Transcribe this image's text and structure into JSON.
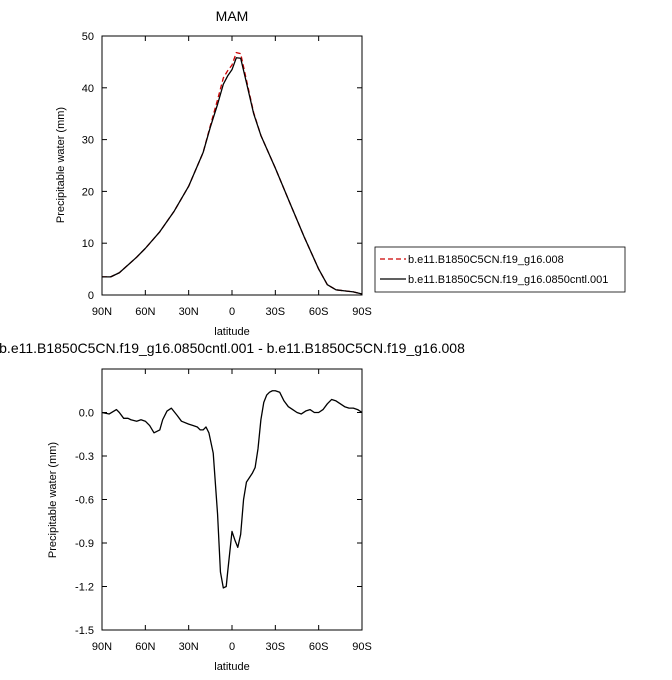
{
  "chart_data": [
    {
      "type": "line",
      "title": "MAM",
      "xlabel": "latitude",
      "ylabel": "Precipitable water (mm)",
      "xlim": [
        90,
        -90
      ],
      "ylim": [
        0,
        50
      ],
      "x_ticks": [
        90,
        60,
        30,
        0,
        -30,
        -60,
        -90
      ],
      "x_tick_labels": [
        "90N",
        "60N",
        "30N",
        "0",
        "30S",
        "60S",
        "90S"
      ],
      "y_ticks": [
        0,
        10,
        20,
        30,
        40,
        50
      ],
      "y_tick_labels": [
        "0",
        "10",
        "20",
        "30",
        "40",
        "50"
      ],
      "legend": "right",
      "series": [
        {
          "name": "b.e11.B1850C5CN.f19_g16.008",
          "color": "#cc0000",
          "dash": "dashed",
          "x": [
            90,
            84,
            78,
            72,
            66,
            60,
            50,
            40,
            30,
            20,
            15,
            10,
            6,
            3,
            0,
            -3,
            -6,
            -10,
            -15,
            -20,
            -30,
            -40,
            -50,
            -60,
            -66,
            -72,
            -78,
            -84,
            -90
          ],
          "y": [
            3.5,
            3.5,
            4.3,
            5.8,
            7.3,
            9.0,
            12.2,
            16.2,
            21.0,
            27.5,
            32.7,
            37.7,
            41.9,
            43.3,
            44.4,
            46.8,
            46.6,
            41.5,
            35.2,
            30.8,
            24.5,
            17.8,
            11.2,
            5.0,
            2.0,
            1.0,
            0.8,
            0.6,
            0.2
          ]
        },
        {
          "name": "b.e11.B1850C5CN.f19_g16.0850cntl.001",
          "color": "#000000",
          "dash": "solid",
          "x": [
            90,
            84,
            78,
            72,
            66,
            60,
            50,
            40,
            30,
            20,
            15,
            10,
            6,
            3,
            0,
            -3,
            -6,
            -10,
            -15,
            -20,
            -30,
            -40,
            -50,
            -60,
            -66,
            -72,
            -78,
            -84,
            -90
          ],
          "y": [
            3.5,
            3.5,
            4.3,
            5.8,
            7.3,
            9.0,
            12.2,
            16.2,
            21.0,
            27.5,
            32.4,
            36.8,
            40.7,
            42.3,
            43.5,
            45.8,
            45.7,
            41.0,
            35.0,
            30.8,
            24.5,
            17.8,
            11.2,
            5.0,
            2.0,
            1.0,
            0.8,
            0.6,
            0.2
          ]
        }
      ]
    },
    {
      "type": "line",
      "title": "b.e11.B1850C5CN.f19_g16.0850cntl.001 - b.e11.B1850C5CN.f19_g16.008",
      "xlabel": "latitude",
      "ylabel": "Precipitable water (mm)",
      "xlim": [
        90,
        -90
      ],
      "ylim": [
        -1.5,
        0.3
      ],
      "x_ticks": [
        90,
        60,
        30,
        0,
        -30,
        -60,
        -90
      ],
      "x_tick_labels": [
        "90N",
        "60N",
        "30N",
        "0",
        "30S",
        "60S",
        "90S"
      ],
      "y_ticks": [
        0.0,
        -0.3,
        -0.6,
        -0.9,
        -1.2,
        -1.5
      ],
      "y_tick_labels": [
        "0.0",
        "-0.3",
        "-0.6",
        "-0.9",
        "-1.2",
        "-1.5"
      ],
      "series": [
        {
          "color": "#000000",
          "dash": "solid",
          "x": [
            90,
            85,
            80,
            78,
            75,
            72,
            70,
            66,
            63,
            60,
            57,
            54,
            50,
            48,
            45,
            42,
            38,
            35,
            30,
            27,
            24,
            22,
            20,
            18,
            16,
            13,
            10,
            8,
            6,
            4,
            3,
            0,
            -2,
            -4,
            -6,
            -8,
            -10,
            -12,
            -14,
            -16,
            -18,
            -20,
            -22,
            -24,
            -26,
            -28,
            -30,
            -33,
            -36,
            -39,
            -42,
            -45,
            -48,
            -51,
            -54,
            -57,
            -60,
            -63,
            -66,
            -69,
            -72,
            -75,
            -78,
            -81,
            -84,
            -87,
            -90
          ],
          "y": [
            0.0,
            -0.01,
            0.02,
            0.0,
            -0.04,
            -0.04,
            -0.05,
            -0.06,
            -0.05,
            -0.06,
            -0.09,
            -0.14,
            -0.12,
            -0.05,
            0.01,
            0.03,
            -0.02,
            -0.06,
            -0.08,
            -0.09,
            -0.1,
            -0.12,
            -0.12,
            -0.1,
            -0.14,
            -0.28,
            -0.7,
            -1.1,
            -1.21,
            -1.2,
            -1.1,
            -0.82,
            -0.88,
            -0.93,
            -0.84,
            -0.6,
            -0.48,
            -0.45,
            -0.42,
            -0.38,
            -0.25,
            -0.05,
            0.07,
            0.12,
            0.14,
            0.15,
            0.15,
            0.14,
            0.08,
            0.04,
            0.02,
            0.0,
            -0.01,
            0.01,
            0.02,
            0.0,
            0.0,
            0.02,
            0.06,
            0.09,
            0.08,
            0.06,
            0.04,
            0.03,
            0.03,
            0.02,
            0.0
          ]
        }
      ]
    }
  ]
}
